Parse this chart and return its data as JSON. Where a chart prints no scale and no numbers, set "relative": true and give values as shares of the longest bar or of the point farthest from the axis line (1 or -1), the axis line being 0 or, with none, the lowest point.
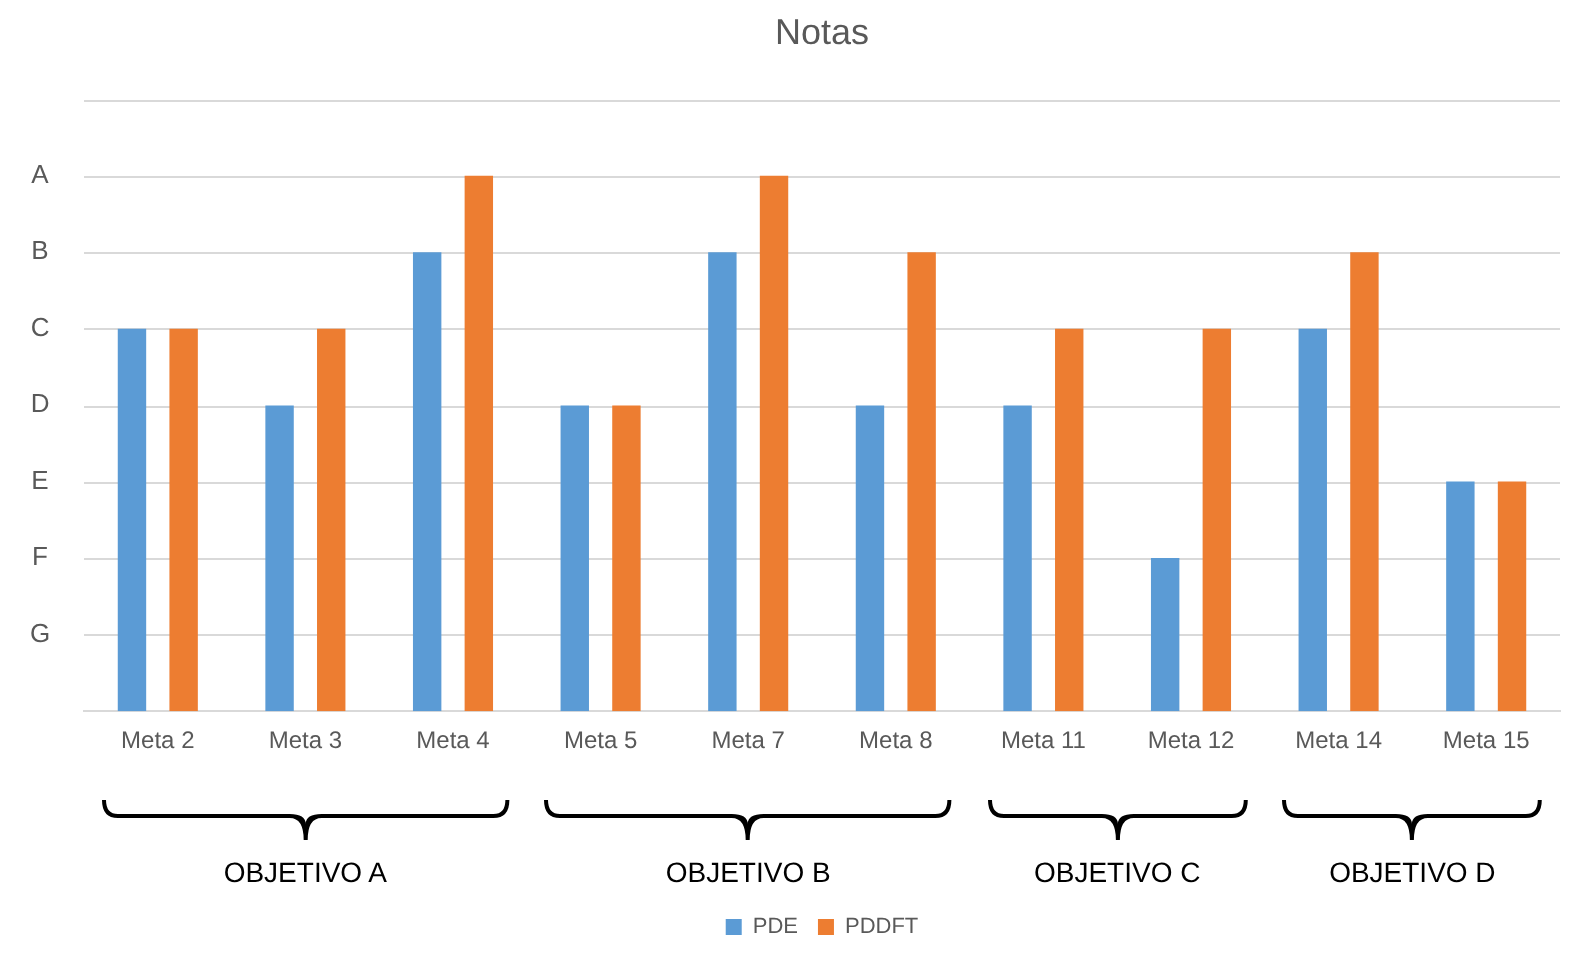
{
  "chart_data": {
    "type": "bar",
    "title": "Notas",
    "relative": true,
    "categories": [
      "Meta 2",
      "Meta 3",
      "Meta 4",
      "Meta 5",
      "Meta 7",
      "Meta 8",
      "Meta 11",
      "Meta 12",
      "Meta 14",
      "Meta 15"
    ],
    "series": [
      {
        "name": "PDE",
        "color": "#5b9bd5",
        "values": [
          0.714,
          0.571,
          0.857,
          0.571,
          0.857,
          0.571,
          0.571,
          0.286,
          0.714,
          0.429
        ]
      },
      {
        "name": "PDDFT",
        "color": "#ed7d31",
        "values": [
          0.714,
          0.714,
          1,
          0.571,
          1,
          0.857,
          0.714,
          0.714,
          0.857,
          0.429
        ]
      }
    ],
    "grid": "y",
    "legend": "bottom",
    "annotations": [
      "A",
      "B",
      "C",
      "D",
      "E",
      "F",
      "G",
      "OBJETIVO A",
      "OBJETIVO B",
      "OBJETIVO C",
      "OBJETIVO D"
    ]
  }
}
